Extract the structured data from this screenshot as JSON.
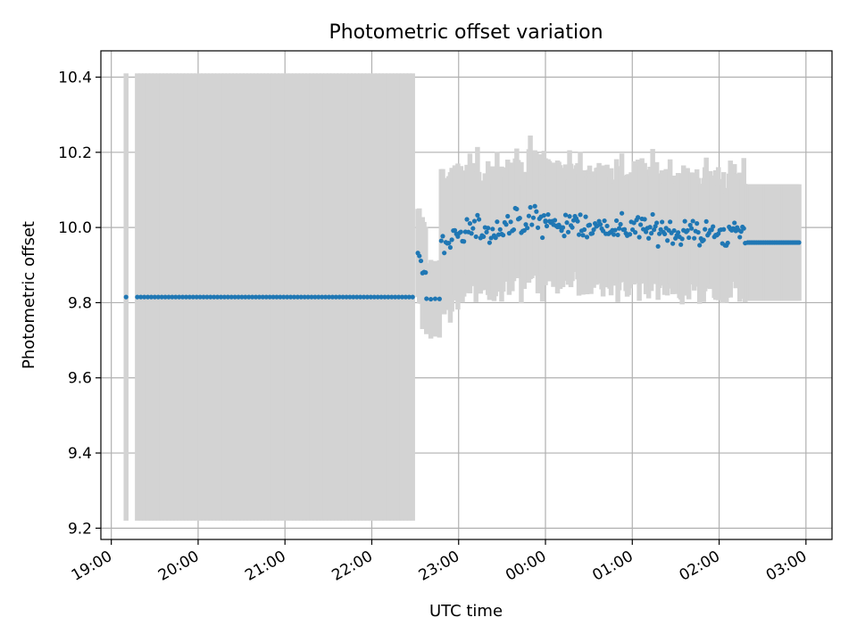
{
  "chart_data": {
    "type": "scatter",
    "title": "Photometric offset variation",
    "xlabel": "UTC time",
    "ylabel": "Photometric offset",
    "x_unit": "hours UTC (values past 24 are after midnight)",
    "xlim": [
      18.88,
      27.3
    ],
    "ylim": [
      9.17,
      10.47
    ],
    "xticks": [
      19,
      20,
      21,
      22,
      23,
      24,
      25,
      26,
      27
    ],
    "xtick_labels": [
      "19:00",
      "20:00",
      "21:00",
      "22:00",
      "23:00",
      "00:00",
      "01:00",
      "02:00",
      "03:00"
    ],
    "yticks": [
      9.2,
      9.4,
      9.6,
      9.8,
      10.0,
      10.2,
      10.4
    ],
    "ytick_labels": [
      "9.2",
      "9.4",
      "9.6",
      "9.8",
      "10.0",
      "10.2",
      "10.4"
    ],
    "grid": true,
    "marker_color": "#1f77b4",
    "errorbar_color": "#d3d3d3",
    "segments": [
      {
        "x_start": 19.17,
        "x_end": 19.17,
        "n": 1,
        "y_start": 9.815,
        "y_end": 9.815,
        "err": 0.595,
        "jitter": 0,
        "err_jitter": 0
      },
      {
        "x_start": 19.3,
        "x_end": 22.47,
        "n": 80,
        "y_start": 9.815,
        "y_end": 9.815,
        "err": 0.595,
        "jitter": 0,
        "err_jitter": 0
      },
      {
        "x_start": 22.53,
        "x_end": 22.62,
        "n": 6,
        "y_start": 9.94,
        "y_end": 9.87,
        "err": 0.13,
        "jitter": 0.03,
        "err_jitter": 0.03
      },
      {
        "x_start": 22.63,
        "x_end": 22.78,
        "n": 4,
        "y_start": 9.81,
        "y_end": 9.81,
        "err": 0.1,
        "jitter": 0.005,
        "err_jitter": 0.01
      },
      {
        "x_start": 22.8,
        "x_end": 24.0,
        "n": 70,
        "y_start": 9.97,
        "y_end": 10.02,
        "err": 0.16,
        "jitter": 0.06,
        "err_jitter": 0.05
      },
      {
        "x_start": 24.0,
        "x_end": 26.3,
        "n": 150,
        "y_start": 10.01,
        "y_end": 9.98,
        "err": 0.15,
        "jitter": 0.05,
        "err_jitter": 0.05
      },
      {
        "x_start": 26.33,
        "x_end": 26.92,
        "n": 30,
        "y_start": 9.96,
        "y_end": 9.96,
        "err": 0.155,
        "jitter": 0,
        "err_jitter": 0
      }
    ]
  }
}
